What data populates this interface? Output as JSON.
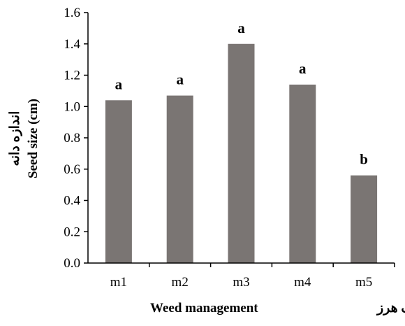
{
  "chart_data": {
    "type": "bar",
    "categories": [
      "m1",
      "m2",
      "m3",
      "m4",
      "m5"
    ],
    "values": [
      1.04,
      1.07,
      1.4,
      1.14,
      0.56
    ],
    "significance_letters": [
      "a",
      "a",
      "a",
      "a",
      "b"
    ],
    "xlabel": "Weed management",
    "xlabel_fa": "مدیریت علف هرز",
    "ylabel": "Seed size (cm)",
    "ylabel_fa": "اندازه دانه",
    "ylim": [
      0,
      1.6
    ],
    "yticks": [
      "0.0",
      "0.2",
      "0.4",
      "0.6",
      "0.8",
      "1.0",
      "1.2",
      "1.4",
      "1.6"
    ],
    "grid": false,
    "bar_color": "#7a7573"
  }
}
